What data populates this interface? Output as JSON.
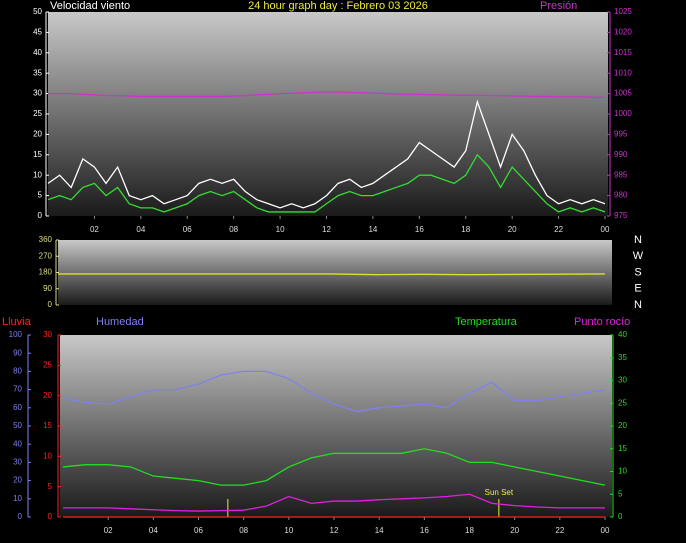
{
  "chart_data": [
    {
      "type": "line",
      "title": "24 hour graph day : Febrero 03 2026",
      "ylabel": "Velocidad viento",
      "y2label": "Presión",
      "x": [
        0,
        0.5,
        1,
        1.5,
        2,
        2.5,
        3,
        3.5,
        4,
        4.5,
        5,
        5.5,
        6,
        6.5,
        7,
        7.5,
        8,
        8.5,
        9,
        9.5,
        10,
        10.5,
        11,
        11.5,
        12,
        12.5,
        13,
        13.5,
        14,
        14.5,
        15,
        15.5,
        16,
        16.5,
        17,
        17.5,
        18,
        18.5,
        19,
        19.5,
        20,
        20.5,
        21,
        21.5,
        22,
        22.5,
        23,
        23.5,
        24
      ],
      "xlim": [
        0,
        24
      ],
      "xticks": [
        {
          "value": 2,
          "label": "02"
        },
        {
          "value": 4,
          "label": "04"
        },
        {
          "value": 6,
          "label": "06"
        },
        {
          "value": 8,
          "label": "08"
        },
        10,
        12,
        14,
        16,
        18,
        20,
        22,
        {
          "value": 24,
          "label": "00"
        }
      ],
      "ylim": [
        0,
        50
      ],
      "yticks": [
        0,
        5,
        10,
        15,
        20,
        25,
        30,
        35,
        40,
        45,
        50
      ],
      "y2lim": [
        975,
        1025
      ],
      "y2ticks": [
        975,
        980,
        985,
        990,
        995,
        1000,
        1005,
        1010,
        1015,
        1020,
        1025
      ],
      "series": [
        {
          "color": "#ffffff",
          "values": [
            8,
            10,
            7,
            14,
            12,
            8,
            12,
            5,
            4,
            5,
            3,
            4,
            5,
            8,
            9,
            8,
            9,
            6,
            4,
            3,
            2,
            3,
            2,
            3,
            5,
            8,
            9,
            7,
            8,
            10,
            12,
            14,
            18,
            16,
            14,
            12,
            16,
            28,
            20,
            12,
            20,
            16,
            10,
            5,
            3,
            4,
            3,
            4,
            3
          ]
        },
        {
          "color": "#33dd33",
          "values": [
            4,
            5,
            4,
            7,
            8,
            5,
            7,
            3,
            2,
            2,
            1,
            2,
            3,
            5,
            6,
            5,
            6,
            4,
            2,
            1,
            1,
            1,
            1,
            1,
            3,
            5,
            6,
            5,
            5,
            6,
            7,
            8,
            10,
            10,
            9,
            8,
            10,
            15,
            12,
            7,
            12,
            9,
            6,
            3,
            1,
            2,
            1,
            2,
            1
          ]
        },
        {
          "color": "#cc33cc",
          "axis": "y2",
          "values": [
            1005,
            1005,
            1005,
            1004.8,
            1004.7,
            1004.5,
            1004.5,
            1004.4,
            1004.3,
            1004.3,
            1004.3,
            1004.3,
            1004.3,
            1004.3,
            1004.3,
            1004.3,
            1004.4,
            1004.5,
            1004.7,
            1004.8,
            1005,
            1005.1,
            1005.2,
            1005.3,
            1005.4,
            1005.4,
            1005.3,
            1005.2,
            1005.1,
            1005,
            1004.9,
            1004.8,
            1004.8,
            1004.7,
            1004.7,
            1004.6,
            1004.6,
            1004.6,
            1004.5,
            1004.5,
            1004.4,
            1004.4,
            1004.3,
            1004.3,
            1004.2,
            1004.2,
            1004.2,
            1004.1,
            1004.1
          ]
        }
      ]
    },
    {
      "type": "line",
      "x": [
        0,
        6,
        12,
        14,
        16,
        18,
        24
      ],
      "xlim": [
        0,
        24
      ],
      "ylim": [
        0,
        360
      ],
      "yticks": [
        0,
        90,
        180,
        270,
        360
      ],
      "direction_labels": [
        "N",
        "W",
        "S",
        "E",
        "N"
      ],
      "series": [
        {
          "color": "#dddd33",
          "values": [
            172,
            172,
            172,
            168,
            170,
            168,
            172
          ]
        }
      ]
    },
    {
      "type": "line",
      "ylabel": "Humedad",
      "y2label": "Lluvia",
      "y3label": "Temperatura",
      "y4label": "Punto rocío",
      "x": [
        0,
        1,
        2,
        3,
        4,
        5,
        6,
        7,
        8,
        9,
        10,
        11,
        12,
        13,
        14,
        15,
        16,
        17,
        18,
        19,
        20,
        21,
        22,
        23,
        24
      ],
      "xlim": [
        0,
        24
      ],
      "xticks": [
        {
          "value": 2,
          "label": "02"
        },
        {
          "value": 4,
          "label": "04"
        },
        {
          "value": 6,
          "label": "06"
        },
        {
          "value": 8,
          "label": "08"
        },
        10,
        12,
        14,
        16,
        18,
        20,
        22,
        {
          "value": 24,
          "label": "00"
        }
      ],
      "ylim": [
        0,
        100
      ],
      "yticks": [
        0,
        10,
        20,
        30,
        40,
        50,
        60,
        70,
        80,
        90,
        100
      ],
      "y2lim": [
        0,
        30
      ],
      "y2ticks": [
        0,
        5,
        10,
        15,
        20,
        25,
        30
      ],
      "y3lim": [
        0,
        40
      ],
      "y3ticks": [
        0,
        5,
        10,
        15,
        20,
        25,
        30,
        35,
        40
      ],
      "vlines": [
        7.3
      ],
      "annotations": [
        {
          "text": "Sun Set",
          "x": 19.3
        }
      ],
      "series": [
        {
          "color": "#8080ee",
          "values": [
            65,
            63,
            62,
            66,
            70,
            70,
            73,
            78,
            80,
            80,
            76,
            68,
            62,
            58,
            60,
            61,
            62,
            60,
            68,
            74,
            64,
            64,
            66,
            68,
            70
          ]
        },
        {
          "color": "#ff2222",
          "axis": "y2",
          "values": [
            0,
            0,
            0,
            0,
            0,
            0,
            0,
            0,
            0,
            0,
            0,
            0,
            0,
            0,
            0,
            0,
            0,
            0,
            0,
            0,
            0,
            0,
            0,
            0,
            0
          ]
        },
        {
          "color": "#22dd22",
          "axis": "y3",
          "values": [
            11,
            11.5,
            11.5,
            11,
            9,
            8.5,
            8,
            7,
            7,
            8,
            11,
            13,
            14,
            14,
            14,
            14,
            15,
            14,
            12,
            12,
            11,
            10,
            9,
            8,
            7
          ]
        },
        {
          "color": "#dd22dd",
          "axis": "y3",
          "values": [
            2,
            2,
            2,
            1.8,
            1.6,
            1.4,
            1.3,
            1.4,
            1.5,
            2.4,
            4.5,
            3,
            3.5,
            3.5,
            3.8,
            4,
            4.2,
            4.5,
            5,
            3,
            2.5,
            2.2,
            2,
            2,
            2
          ]
        }
      ]
    }
  ]
}
